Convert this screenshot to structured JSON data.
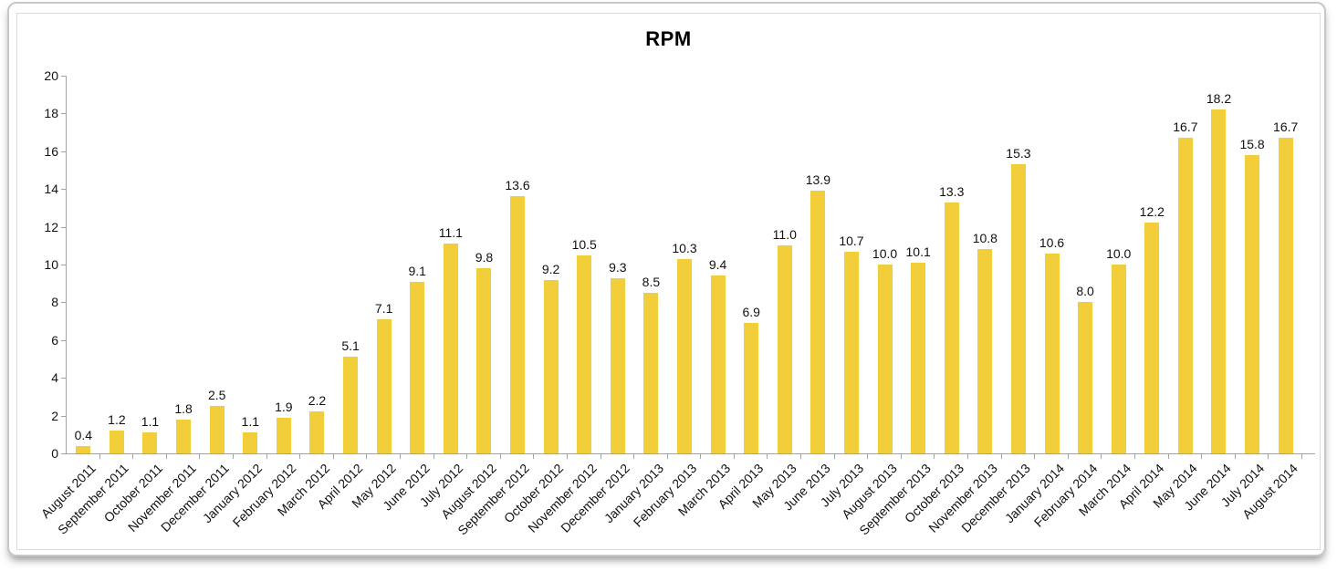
{
  "chart_data": {
    "type": "bar",
    "title": "RPM",
    "categories": [
      "August 2011",
      "September 2011",
      "October 2011",
      "November 2011",
      "December 2011",
      "January 2012",
      "February 2012",
      "March 2012",
      "April 2012",
      "May 2012",
      "June 2012",
      "July 2012",
      "August 2012",
      "September 2012",
      "October 2012",
      "November 2012",
      "December 2012",
      "January 2013",
      "February 2013",
      "March 2013",
      "April 2013",
      "May 2013",
      "June 2013",
      "July 2013",
      "August 2013",
      "September 2013",
      "October 2013",
      "November 2013",
      "December 2013",
      "January 2014",
      "February 2014",
      "March 2014",
      "April 2014",
      "May 2014",
      "June 2014",
      "July 2014",
      "August 2014"
    ],
    "values": [
      0.4,
      1.2,
      1.1,
      1.8,
      2.5,
      1.1,
      1.9,
      2.2,
      5.1,
      7.1,
      9.1,
      11.1,
      9.8,
      13.6,
      9.2,
      10.5,
      9.3,
      8.5,
      10.3,
      9.4,
      6.9,
      11.0,
      13.9,
      10.7,
      10.0,
      10.1,
      13.3,
      10.8,
      15.3,
      10.6,
      8.0,
      10.0,
      12.2,
      16.7,
      18.2,
      15.8,
      16.7
    ],
    "value_labels": [
      "0.4",
      "1.2",
      "1.1",
      "1.8",
      "2.5",
      "1.1",
      "1.9",
      "2.2",
      "5.1",
      "7.1",
      "9.1",
      "11.1",
      "9.8",
      "13.6",
      "9.2",
      "10.5",
      "9.3",
      "8.5",
      "10.3",
      "9.4",
      "6.9",
      "11.0",
      "13.9",
      "10.7",
      "10.0",
      "10.1",
      "13.3",
      "10.8",
      "15.3",
      "10.6",
      "8.0",
      "10.0",
      "12.2",
      "16.7",
      "18.2",
      "15.8",
      "16.7"
    ],
    "xlabel": "",
    "ylabel": "",
    "ylim": [
      0,
      20
    ],
    "yticks": [
      0,
      2,
      4,
      6,
      8,
      10,
      12,
      14,
      16,
      18,
      20
    ],
    "grid": false,
    "legend": "none",
    "bar_color": "#F2CE3B",
    "axis_color": "#A3A3A3",
    "text_color": "#111111"
  }
}
